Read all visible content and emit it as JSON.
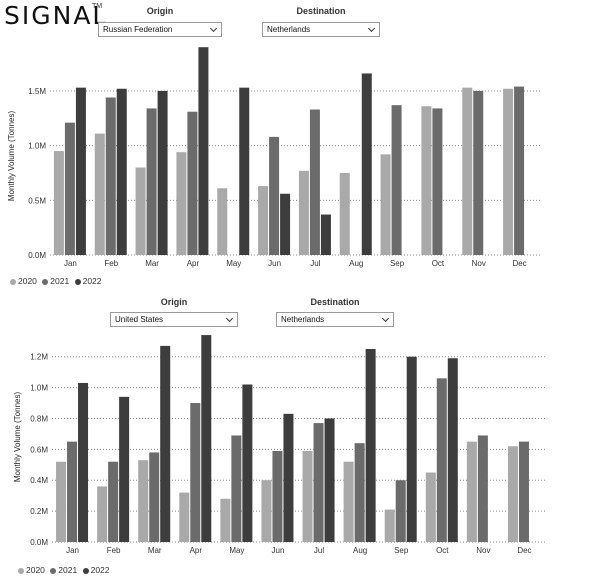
{
  "brand": {
    "logo_text": "SIGNAL",
    "trademark": "TM"
  },
  "panels": [
    {
      "filters": {
        "origin_label": "Origin",
        "origin_value": "Russian Federation",
        "destination_label": "Destination",
        "destination_value": "Netherlands"
      },
      "legend": [
        "2020",
        "2021",
        "2022"
      ]
    },
    {
      "filters": {
        "origin_label": "Origin",
        "origin_value": "United States",
        "destination_label": "Destination",
        "destination_value": "Netherlands"
      },
      "legend": [
        "2020",
        "2021",
        "2022"
      ]
    }
  ],
  "chart_data": [
    {
      "type": "bar",
      "ylabel": "Monthly Volume (Tonnes)",
      "categories": [
        "Jan",
        "Feb",
        "Mar",
        "Apr",
        "May",
        "Jun",
        "Jul",
        "Aug",
        "Sep",
        "Oct",
        "Nov",
        "Dec"
      ],
      "yticks": [
        "0.0M",
        "0.5M",
        "1.0M",
        "1.5M"
      ],
      "ylim": [
        0,
        1.92
      ],
      "grid": true,
      "legend_position": "bottom-left",
      "series": [
        {
          "name": "2020",
          "color": "#a9a9a9",
          "values": [
            0.95,
            1.11,
            0.8,
            0.94,
            0.61,
            0.63,
            0.77,
            0.75,
            0.92,
            1.36,
            1.53,
            1.52
          ]
        },
        {
          "name": "2021",
          "color": "#6b6b6b",
          "values": [
            1.21,
            1.44,
            1.34,
            1.31,
            null,
            1.08,
            1.33,
            null,
            1.37,
            1.34,
            1.5,
            1.54
          ]
        },
        {
          "name": "2022",
          "color": "#3d3d3d",
          "values": [
            1.53,
            1.52,
            1.5,
            1.9,
            1.53,
            0.56,
            0.37,
            1.66,
            null,
            null,
            null,
            null
          ]
        }
      ]
    },
    {
      "type": "bar",
      "ylabel": "Monthly Volume (Tonnes)",
      "categories": [
        "Jan",
        "Feb",
        "Mar",
        "Apr",
        "May",
        "Jun",
        "Jul",
        "Aug",
        "Sep",
        "Oct",
        "Nov",
        "Dec"
      ],
      "yticks": [
        "0.0M",
        "0.2M",
        "0.4M",
        "0.6M",
        "0.8M",
        "1.0M",
        "1.2M"
      ],
      "ylim": [
        0,
        1.36
      ],
      "grid": true,
      "legend_position": "bottom-left",
      "series": [
        {
          "name": "2020",
          "color": "#a9a9a9",
          "values": [
            0.52,
            0.36,
            0.53,
            0.32,
            0.28,
            0.4,
            0.59,
            0.52,
            0.21,
            0.45,
            0.65,
            0.62
          ]
        },
        {
          "name": "2021",
          "color": "#6b6b6b",
          "values": [
            0.65,
            0.52,
            0.58,
            0.9,
            0.69,
            0.59,
            0.77,
            0.64,
            0.4,
            1.06,
            0.69,
            0.65
          ]
        },
        {
          "name": "2022",
          "color": "#3d3d3d",
          "values": [
            1.03,
            0.94,
            1.27,
            1.34,
            1.02,
            0.83,
            0.8,
            1.25,
            1.2,
            1.19,
            null,
            null
          ]
        }
      ]
    }
  ]
}
